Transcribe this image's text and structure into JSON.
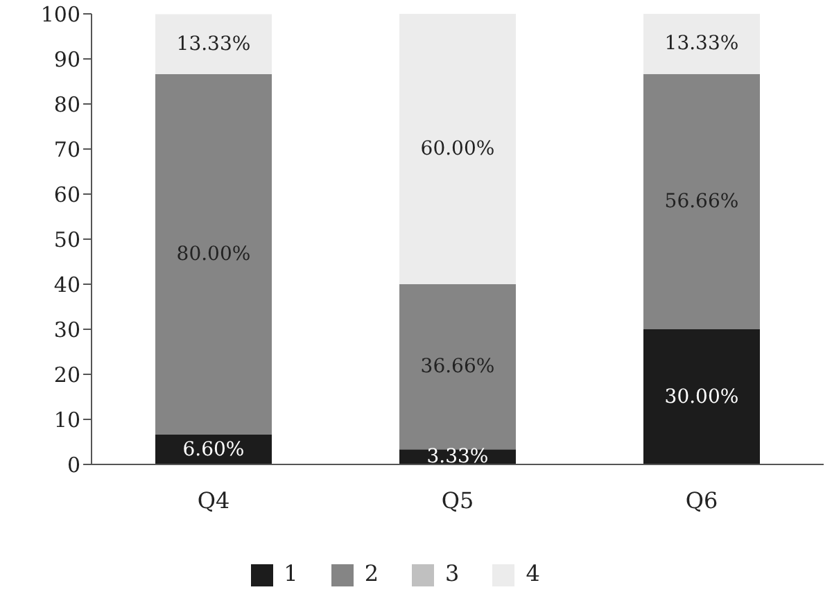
{
  "chart_data": {
    "type": "bar",
    "stacked": true,
    "categories": [
      "Q4",
      "Q5",
      "Q6"
    ],
    "series": [
      {
        "name": "1",
        "color": "#1c1c1c",
        "values": [
          6.6,
          3.33,
          30.0
        ],
        "value_labels": [
          "6.60%",
          "3.33%",
          "30.00%"
        ]
      },
      {
        "name": "2",
        "color": "#858585",
        "values": [
          80.0,
          36.66,
          56.66
        ],
        "value_labels": [
          "80.00%",
          "36.66%",
          "56.66%"
        ]
      },
      {
        "name": "3",
        "color": "#c0c0c0",
        "values": [
          0,
          0,
          0
        ]
      },
      {
        "name": "4",
        "color": "#ececec",
        "values": [
          13.33,
          60.0,
          13.33
        ],
        "value_labels": [
          "13.33%",
          "60.00%",
          "13.33%"
        ]
      }
    ],
    "ylim": [
      0,
      100
    ],
    "yticks": [
      0,
      10,
      20,
      30,
      40,
      50,
      60,
      70,
      80,
      90,
      100
    ],
    "legend": "bottom"
  }
}
